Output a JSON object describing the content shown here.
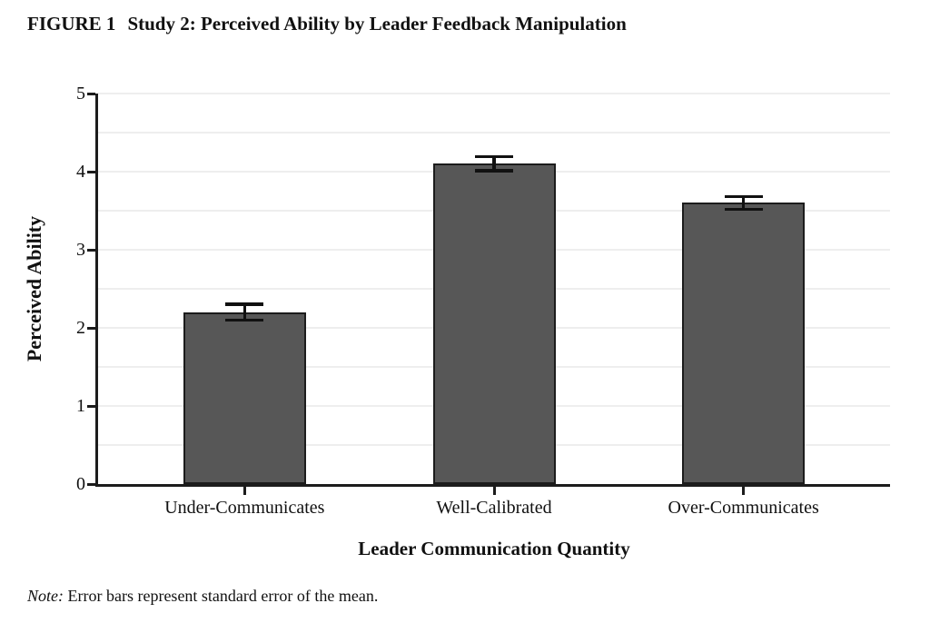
{
  "figure": {
    "label": "FIGURE 1",
    "title": "Study 2: Perceived Ability by Leader Feedback Manipulation"
  },
  "note": {
    "prefix": "Note:",
    "text": " Error bars represent standard error of the mean."
  },
  "chart_data": {
    "type": "bar",
    "categories": [
      "Under-Communicates",
      "Well-Calibrated",
      "Over-Communicates"
    ],
    "values": [
      2.2,
      4.1,
      3.6
    ],
    "std_errors": [
      0.1,
      0.09,
      0.08
    ],
    "title": "FIGURE 1 Study 2: Perceived Ability by Leader Feedback Manipulation",
    "xlabel": "Leader Communication Quantity",
    "ylabel": "Perceived Ability",
    "ylim": [
      0,
      5
    ],
    "yticks": [
      0,
      1,
      2,
      3,
      4,
      5
    ],
    "grid_step": 0.5,
    "grid": "horizontal",
    "legend": "none",
    "annotation": "Error bars represent standard error of the mean.",
    "bar_color": "#575757",
    "bar_border_color": "#1c1c1c",
    "grid_color": "#eeeeee",
    "axis_color": "#1c1c1c",
    "error_bar_color": "#111111"
  }
}
